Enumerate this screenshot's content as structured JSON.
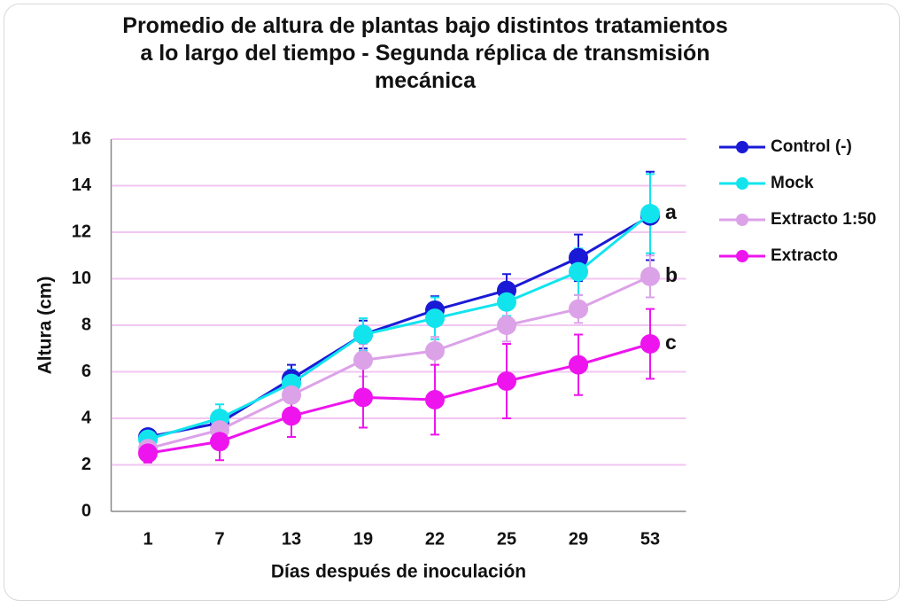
{
  "chart_data": {
    "type": "line",
    "title": "Promedio de altura de plantas bajo distintos tratamientos a lo largo del tiempo - Segunda réplica de transmisión mecánica",
    "x_label": "Días después de inoculación",
    "y_label": "Altura (cm)",
    "categories": [
      "1",
      "7",
      "13",
      "19",
      "22",
      "25",
      "29",
      "53"
    ],
    "series": [
      {
        "name": "Control (-)",
        "color": "#1a1ad6",
        "values": [
          3.2,
          3.8,
          5.7,
          7.6,
          8.65,
          9.5,
          10.9,
          12.7
        ],
        "errors": [
          0.3,
          0.4,
          0.6,
          0.6,
          0.6,
          0.7,
          1.0,
          1.9
        ]
      },
      {
        "name": "Mock",
        "color": "#12e4ee",
        "values": [
          3.1,
          4.0,
          5.5,
          7.6,
          8.3,
          9.0,
          10.3,
          12.8
        ],
        "errors": [
          0.3,
          0.6,
          0.6,
          0.7,
          0.9,
          0.6,
          1.0,
          1.7
        ]
      },
      {
        "name": "Extracto 1:50",
        "color": "#dca2e8",
        "values": [
          2.7,
          3.5,
          5.0,
          6.5,
          6.9,
          8.0,
          8.7,
          10.1
        ],
        "errors": [
          0.3,
          0.5,
          0.6,
          0.7,
          0.6,
          0.7,
          0.6,
          0.9
        ]
      },
      {
        "name": "Extracto",
        "color": "#ee14ee",
        "values": [
          2.5,
          3.0,
          4.1,
          4.9,
          4.8,
          5.6,
          6.3,
          7.2
        ],
        "errors": [
          0.4,
          0.8,
          0.9,
          1.3,
          1.5,
          1.6,
          1.3,
          1.5
        ]
      }
    ],
    "annotations": [
      "a",
      "b",
      "c"
    ],
    "ylim": [
      0,
      16
    ],
    "yticks": [
      0,
      2,
      4,
      6,
      8,
      10,
      12,
      14,
      16
    ],
    "grid": true,
    "grid_color": "#f2c6f2",
    "legend": "right"
  }
}
